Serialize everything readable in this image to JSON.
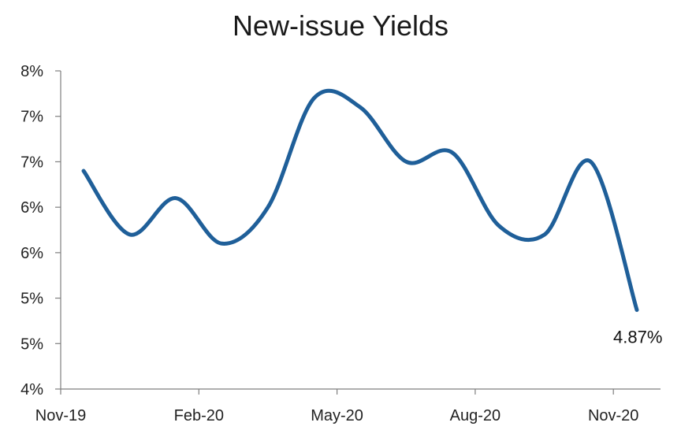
{
  "chart_data": {
    "type": "line",
    "title": "New-issue Yields",
    "xlabel": "",
    "ylabel": "",
    "x_tick_labels": [
      "Nov-19",
      "Feb-20",
      "May-20",
      "Aug-20",
      "Nov-20"
    ],
    "y_tick_labels": [
      "4%",
      "5%",
      "5%",
      "6%",
      "6%",
      "7%",
      "7%",
      "8%"
    ],
    "ylim": [
      4.0,
      7.5
    ],
    "grid": false,
    "legend": "none",
    "series": [
      {
        "color": "#1f5f99",
        "x": [
          "Nov-19",
          "Dec-19",
          "Jan-20",
          "Feb-20",
          "Mar-20",
          "Apr-20",
          "May-20",
          "Jun-20",
          "Jul-20",
          "Aug-20",
          "Sep-20",
          "Oct-20",
          "Nov-20"
        ],
        "values": [
          6.4,
          5.7,
          6.1,
          5.6,
          6.0,
          7.2,
          7.1,
          6.5,
          6.6,
          5.8,
          5.7,
          6.5,
          4.87
        ]
      }
    ],
    "end_label": "4.87%"
  }
}
